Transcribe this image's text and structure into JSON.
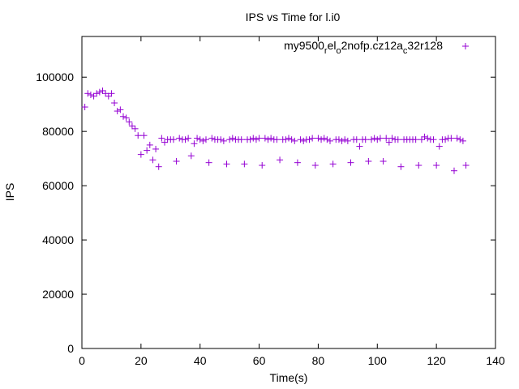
{
  "chart_data": {
    "type": "scatter",
    "title": "IPS vs Time for l.i0",
    "xlabel": "Time(s)",
    "ylabel": "IPS",
    "xlim": [
      0,
      140
    ],
    "ylim": [
      0,
      115000
    ],
    "grid": false,
    "legend_position": "top-right",
    "x_ticks": [
      0,
      20,
      40,
      60,
      80,
      100,
      120,
      140
    ],
    "y_ticks": [
      0,
      20000,
      40000,
      60000,
      80000,
      100000
    ],
    "series": [
      {
        "name": "my9500_rel_o2nofp.cz12a_c32r128",
        "legend": {
          "p1": "my9500",
          "s1": "r",
          "p2": "el",
          "s2": "o",
          "p3": "2nofp.cz12a",
          "s3": "c",
          "p4": "32r128"
        },
        "marker": "+",
        "color": "#9400d3",
        "points": [
          [
            1,
            89000
          ],
          [
            2,
            94000
          ],
          [
            3,
            93500
          ],
          [
            4,
            93000
          ],
          [
            5,
            94000
          ],
          [
            6,
            94500
          ],
          [
            7,
            95000
          ],
          [
            8,
            94000
          ],
          [
            9,
            93000
          ],
          [
            10,
            94000
          ],
          [
            11,
            90500
          ],
          [
            12,
            87500
          ],
          [
            13,
            88000
          ],
          [
            14,
            85500
          ],
          [
            15,
            85000
          ],
          [
            16,
            83500
          ],
          [
            17,
            82000
          ],
          [
            18,
            81000
          ],
          [
            19,
            78500
          ],
          [
            20,
            71500
          ],
          [
            21,
            78500
          ],
          [
            22,
            73000
          ],
          [
            23,
            75000
          ],
          [
            24,
            69500
          ],
          [
            25,
            73500
          ],
          [
            26,
            67000
          ],
          [
            27,
            77500
          ],
          [
            28,
            76000
          ],
          [
            29,
            77000
          ],
          [
            30,
            77000
          ],
          [
            31,
            77000
          ],
          [
            32,
            69000
          ],
          [
            33,
            77500
          ],
          [
            34,
            77000
          ],
          [
            35,
            77000
          ],
          [
            36,
            77500
          ],
          [
            37,
            71000
          ],
          [
            38,
            75500
          ],
          [
            39,
            77500
          ],
          [
            40,
            77000
          ],
          [
            41,
            76500
          ],
          [
            42,
            77000
          ],
          [
            43,
            68500
          ],
          [
            44,
            77500
          ],
          [
            45,
            77000
          ],
          [
            46,
            77000
          ],
          [
            47,
            77000
          ],
          [
            48,
            76500
          ],
          [
            49,
            68000
          ],
          [
            50,
            77000
          ],
          [
            51,
            77500
          ],
          [
            52,
            77000
          ],
          [
            53,
            77000
          ],
          [
            54,
            77000
          ],
          [
            55,
            68000
          ],
          [
            56,
            77000
          ],
          [
            57,
            77000
          ],
          [
            58,
            77500
          ],
          [
            59,
            77000
          ],
          [
            60,
            77500
          ],
          [
            61,
            67500
          ],
          [
            62,
            77500
          ],
          [
            63,
            77000
          ],
          [
            64,
            77500
          ],
          [
            65,
            77000
          ],
          [
            66,
            77000
          ],
          [
            67,
            69500
          ],
          [
            68,
            77000
          ],
          [
            69,
            77000
          ],
          [
            70,
            77500
          ],
          [
            71,
            77000
          ],
          [
            72,
            76500
          ],
          [
            73,
            68500
          ],
          [
            74,
            77000
          ],
          [
            75,
            76500
          ],
          [
            76,
            77000
          ],
          [
            77,
            77000
          ],
          [
            78,
            77500
          ],
          [
            79,
            67500
          ],
          [
            80,
            77500
          ],
          [
            81,
            77000
          ],
          [
            82,
            77500
          ],
          [
            83,
            77000
          ],
          [
            84,
            76500
          ],
          [
            85,
            68000
          ],
          [
            86,
            77000
          ],
          [
            87,
            77000
          ],
          [
            88,
            76500
          ],
          [
            89,
            77000
          ],
          [
            90,
            76500
          ],
          [
            91,
            68500
          ],
          [
            92,
            77000
          ],
          [
            93,
            77000
          ],
          [
            94,
            74500
          ],
          [
            95,
            77000
          ],
          [
            96,
            77000
          ],
          [
            97,
            69000
          ],
          [
            98,
            77000
          ],
          [
            99,
            77500
          ],
          [
            100,
            77000
          ],
          [
            101,
            77500
          ],
          [
            102,
            69000
          ],
          [
            103,
            77500
          ],
          [
            104,
            76000
          ],
          [
            105,
            77500
          ],
          [
            106,
            77000
          ],
          [
            107,
            77000
          ],
          [
            108,
            67000
          ],
          [
            109,
            77000
          ],
          [
            110,
            77000
          ],
          [
            111,
            77000
          ],
          [
            112,
            77000
          ],
          [
            113,
            77000
          ],
          [
            114,
            67500
          ],
          [
            115,
            77000
          ],
          [
            116,
            78000
          ],
          [
            117,
            77500
          ],
          [
            118,
            77000
          ],
          [
            119,
            77000
          ],
          [
            120,
            67500
          ],
          [
            121,
            74500
          ],
          [
            122,
            77000
          ],
          [
            123,
            77000
          ],
          [
            124,
            77500
          ],
          [
            125,
            77500
          ],
          [
            126,
            65500
          ],
          [
            127,
            77500
          ],
          [
            128,
            77000
          ],
          [
            129,
            76500
          ],
          [
            130,
            67500
          ]
        ]
      }
    ]
  }
}
